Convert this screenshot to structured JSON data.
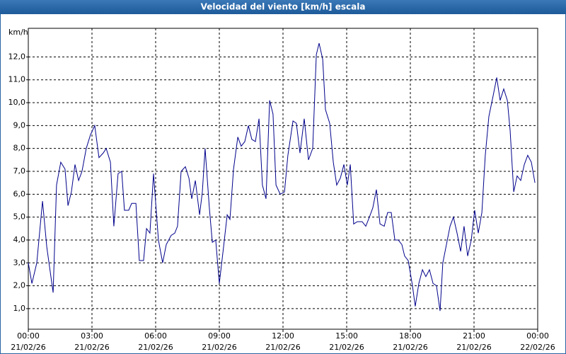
{
  "chart_data": {
    "type": "line",
    "title": "Velocidad del viento [km/h] escala",
    "y_label": "km/h",
    "xlim": [
      0,
      24
    ],
    "xticks": [
      {
        "value": 0,
        "label": "00:00"
      },
      {
        "value": 3,
        "label": "03:00"
      },
      {
        "value": 6,
        "label": "06:00"
      },
      {
        "value": 9,
        "label": "09:00"
      },
      {
        "value": 12,
        "label": "12:00"
      },
      {
        "value": 15,
        "label": "15:00"
      },
      {
        "value": 18,
        "label": "18:00"
      },
      {
        "value": 21,
        "label": "21:00"
      },
      {
        "value": 24,
        "label": "00:00"
      }
    ],
    "xtick_dates": [
      "21/02/26",
      "21/02/26",
      "21/02/26",
      "21/02/26",
      "21/02/26",
      "21/02/26",
      "21/02/26",
      "21/02/26",
      "22/02/26"
    ],
    "ylim": [
      0.1,
      13.25
    ],
    "yticks": [
      {
        "value": 1,
        "label": "1,0"
      },
      {
        "value": 2,
        "label": "2,0"
      },
      {
        "value": 3,
        "label": "3,0"
      },
      {
        "value": 4,
        "label": "4,0"
      },
      {
        "value": 5,
        "label": "5,0"
      },
      {
        "value": 6,
        "label": "6,0"
      },
      {
        "value": 7,
        "label": "7,0"
      },
      {
        "value": 8,
        "label": "8,0"
      },
      {
        "value": 9,
        "label": "9,0"
      },
      {
        "value": 10,
        "label": "10,0"
      },
      {
        "value": 11,
        "label": "11,0"
      },
      {
        "value": 12,
        "label": "12,0"
      }
    ],
    "grid": true,
    "color": "#00008b",
    "x": [
      0,
      0.17,
      0.4,
      0.67,
      0.87,
      1.17,
      1.33,
      1.53,
      1.73,
      1.87,
      2.03,
      2.2,
      2.37,
      2.53,
      2.73,
      2.93,
      3.13,
      3.33,
      3.53,
      3.67,
      3.87,
      4.03,
      4.23,
      4.4,
      4.53,
      4.73,
      4.87,
      5.07,
      5.23,
      5.43,
      5.57,
      5.73,
      5.9,
      6.13,
      6.33,
      6.5,
      6.73,
      6.9,
      7.03,
      7.2,
      7.4,
      7.57,
      7.7,
      7.87,
      8.07,
      8.2,
      8.33,
      8.53,
      8.67,
      8.83,
      9,
      9.2,
      9.37,
      9.5,
      9.67,
      9.87,
      10.03,
      10.2,
      10.37,
      10.53,
      10.7,
      10.87,
      11.03,
      11.2,
      11.37,
      11.53,
      11.67,
      11.87,
      12.07,
      12.23,
      12.47,
      12.63,
      12.8,
      13,
      13.2,
      13.4,
      13.57,
      13.7,
      13.87,
      14,
      14.2,
      14.37,
      14.53,
      14.7,
      14.87,
      15.03,
      15.17,
      15.33,
      15.5,
      15.73,
      15.9,
      16.07,
      16.23,
      16.4,
      16.57,
      16.77,
      16.93,
      17.1,
      17.27,
      17.43,
      17.6,
      17.73,
      17.9,
      18.1,
      18.23,
      18.4,
      18.57,
      18.73,
      18.9,
      19.07,
      19.23,
      19.4,
      19.53,
      19.7,
      19.87,
      20.03,
      20.2,
      20.37,
      20.53,
      20.7,
      20.87,
      21.03,
      21.2,
      21.37,
      21.53,
      21.7,
      21.9,
      22.07,
      22.23,
      22.4,
      22.57,
      22.7,
      22.87,
      23.03,
      23.2,
      23.37,
      23.53,
      23.7,
      23.87
    ],
    "values": [
      3.0,
      2.1,
      3.0,
      5.7,
      3.7,
      1.7,
      6.4,
      7.4,
      7.1,
      5.5,
      6.1,
      7.3,
      6.6,
      7.0,
      8.0,
      8.6,
      9.0,
      7.6,
      7.8,
      8.0,
      7.4,
      4.6,
      6.9,
      7.0,
      5.3,
      5.3,
      5.6,
      5.6,
      3.1,
      3.1,
      4.5,
      4.3,
      6.9,
      4.0,
      3.0,
      3.8,
      4.2,
      4.3,
      4.6,
      7.0,
      7.2,
      6.7,
      5.8,
      6.6,
      5.1,
      6.1,
      8.0,
      5.4,
      3.9,
      4.0,
      2.1,
      3.7,
      5.1,
      4.9,
      7.1,
      8.5,
      8.1,
      8.3,
      9.0,
      8.4,
      8.3,
      9.3,
      6.4,
      5.8,
      10.1,
      9.5,
      6.4,
      6.0,
      6.1,
      7.7,
      9.2,
      9.1,
      7.8,
      9.3,
      7.5,
      8.0,
      12.1,
      12.6,
      11.9,
      9.7,
      9.1,
      7.4,
      6.4,
      6.7,
      7.3,
      6.4,
      7.3,
      4.7,
      4.8,
      4.8,
      4.6,
      5.0,
      5.4,
      6.2,
      4.7,
      4.6,
      5.2,
      5.2,
      4.0,
      4.0,
      3.8,
      3.3,
      3.1,
      2.0,
      1.1,
      2.1,
      2.7,
      2.4,
      2.7,
      2.1,
      2.0,
      0.9,
      3.0,
      3.8,
      4.6,
      5.0,
      4.3,
      3.5,
      4.6,
      3.3,
      4.0,
      5.3,
      4.3,
      5.2,
      7.7,
      9.4,
      10.3,
      11.1,
      10.1,
      10.6,
      10.1,
      8.8,
      6.1,
      6.8,
      6.6,
      7.3,
      7.7,
      7.4,
      6.5
    ]
  }
}
